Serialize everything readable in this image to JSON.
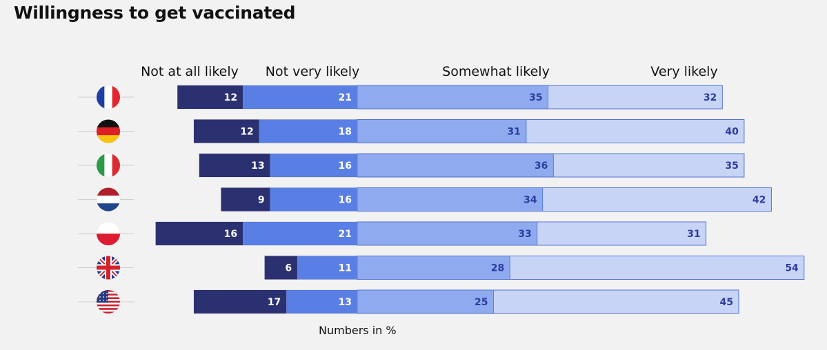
{
  "title": "Willingness to get vaccinated",
  "note": "Numbers in %",
  "colors": {
    "background": "#f2f2f2",
    "not_at_all": "#2b3170",
    "not_very": "#5a7fe4",
    "somewhat": "#8faaef",
    "very": "#c8d4f6",
    "dark_label": "#ffffff",
    "light_label": "#2b3c9e"
  },
  "chart_data": {
    "type": "bar",
    "orientation": "horizontal",
    "stacking": "diverging",
    "categories": [
      "France",
      "Germany",
      "Italy",
      "Netherlands",
      "Poland",
      "United Kingdom",
      "United States"
    ],
    "category_icons": [
      "flag-france-icon",
      "flag-germany-icon",
      "flag-italy-icon",
      "flag-netherlands-icon",
      "flag-poland-icon",
      "flag-uk-icon",
      "flag-usa-icon"
    ],
    "series": [
      {
        "name": "Not at all likely",
        "values": [
          12,
          12,
          13,
          9,
          16,
          6,
          17
        ]
      },
      {
        "name": "Not very likely",
        "values": [
          21,
          18,
          16,
          16,
          21,
          11,
          13
        ]
      },
      {
        "name": "Somewhat likely",
        "values": [
          35,
          31,
          36,
          34,
          33,
          28,
          25
        ]
      },
      {
        "name": "Very likely",
        "values": [
          32,
          40,
          35,
          42,
          31,
          54,
          45
        ]
      }
    ],
    "unit": "%",
    "legend_position": "top",
    "grid": false
  }
}
